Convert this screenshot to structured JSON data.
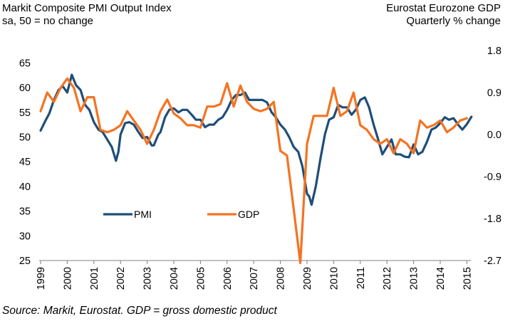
{
  "header": {
    "left_title": "Markit Composite PMI Output Index",
    "left_subtitle": "sa, 50 = no change",
    "right_title": "Eurostat Eurozone GDP",
    "right_subtitle": "Quarterly % change"
  },
  "footer": {
    "source": "Source: Markit, Eurostat. GDP = gross domestic product"
  },
  "chart_data": {
    "type": "line",
    "title": "Markit Composite PMI Output Index vs Eurostat Eurozone GDP",
    "xlabel": "",
    "ylabel_left": "Markit Composite PMI Output Index (sa, 50 = no change)",
    "ylabel_right": "Eurostat Eurozone GDP (Quarterly % change)",
    "xlim": [
      1999,
      2015.3
    ],
    "ylim_left": [
      25,
      67.5
    ],
    "ylim_right": [
      -2.7,
      1.8
    ],
    "x_ticks": [
      "1999",
      "2000",
      "2001",
      "2002",
      "2003",
      "2004",
      "2005",
      "2006",
      "2007",
      "2008",
      "2009",
      "2010",
      "2011",
      "2012",
      "2013",
      "2014",
      "2015"
    ],
    "y_ticks_left": [
      "25",
      "30",
      "35",
      "40",
      "45",
      "50",
      "55",
      "60",
      "65"
    ],
    "y_ticks_right": [
      "-2.7",
      "-1.8",
      "-0.9",
      "0.0",
      "0.9",
      "1.8"
    ],
    "grid": false,
    "legend": {
      "position": "center-left",
      "entries": [
        "PMI",
        "GDP"
      ]
    },
    "series": [
      {
        "name": "PMI",
        "axis": "left",
        "color": "#1F4E79",
        "x": [
          1999.0,
          1999.17,
          1999.33,
          1999.5,
          1999.67,
          1999.83,
          2000.0,
          2000.17,
          2000.25,
          2000.33,
          2000.5,
          2000.67,
          2000.83,
          2001.0,
          2001.17,
          2001.33,
          2001.5,
          2001.67,
          2001.83,
          2001.92,
          2002.0,
          2002.17,
          2002.33,
          2002.5,
          2002.67,
          2002.83,
          2003.0,
          2003.17,
          2003.25,
          2003.42,
          2003.5,
          2003.67,
          2003.83,
          2004.0,
          2004.17,
          2004.33,
          2004.5,
          2004.67,
          2004.83,
          2005.0,
          2005.17,
          2005.33,
          2005.5,
          2005.67,
          2005.83,
          2006.0,
          2006.17,
          2006.33,
          2006.5,
          2006.67,
          2006.83,
          2007.0,
          2007.17,
          2007.33,
          2007.5,
          2007.67,
          2007.83,
          2008.0,
          2008.17,
          2008.33,
          2008.5,
          2008.67,
          2008.83,
          2009.0,
          2009.08,
          2009.17,
          2009.33,
          2009.5,
          2009.67,
          2009.83,
          2010.0,
          2010.17,
          2010.33,
          2010.5,
          2010.67,
          2010.83,
          2011.0,
          2011.17,
          2011.33,
          2011.5,
          2011.67,
          2011.83,
          2012.0,
          2012.17,
          2012.33,
          2012.5,
          2012.67,
          2012.83,
          2013.0,
          2013.17,
          2013.33,
          2013.5,
          2013.67,
          2013.83,
          2014.0,
          2014.17,
          2014.33,
          2014.5,
          2014.67,
          2014.83,
          2015.0,
          2015.17
        ],
        "values": [
          51.3,
          53.2,
          54.8,
          57.5,
          59.5,
          60.3,
          59.0,
          62.6,
          61.5,
          60.5,
          59.5,
          56.5,
          55.5,
          53.0,
          51.5,
          51.0,
          49.5,
          48.0,
          45.2,
          47.0,
          50.5,
          52.8,
          53.0,
          52.5,
          51.0,
          49.8,
          50.0,
          48.3,
          48.3,
          50.5,
          51.0,
          54.0,
          55.5,
          55.8,
          55.0,
          55.5,
          55.5,
          54.5,
          53.5,
          53.5,
          52.0,
          52.5,
          52.5,
          53.5,
          54.0,
          55.5,
          57.5,
          58.5,
          58.5,
          59.0,
          57.5,
          57.5,
          57.5,
          57.5,
          57.0,
          55.0,
          54.0,
          52.5,
          51.5,
          50.0,
          48.0,
          47.0,
          44.0,
          38.5,
          38.0,
          36.3,
          40.0,
          45.5,
          50.5,
          53.5,
          54.0,
          56.5,
          56.0,
          56.0,
          54.5,
          55.5,
          57.5,
          58.0,
          56.0,
          52.5,
          49.5,
          46.5,
          48.0,
          49.5,
          46.5,
          46.5,
          46.0,
          45.9,
          48.5,
          46.5,
          47.0,
          49.0,
          51.5,
          51.9,
          52.8,
          54.0,
          53.5,
          53.8,
          52.5,
          51.5,
          52.6,
          54.1
        ]
      },
      {
        "name": "GDP",
        "axis": "right",
        "color": "#F47321",
        "x": [
          1999.0,
          1999.25,
          1999.5,
          1999.75,
          2000.0,
          2000.25,
          2000.5,
          2000.75,
          2001.0,
          2001.25,
          2001.5,
          2001.75,
          2002.0,
          2002.25,
          2002.5,
          2002.75,
          2003.0,
          2003.25,
          2003.5,
          2003.75,
          2004.0,
          2004.25,
          2004.5,
          2004.75,
          2005.0,
          2005.25,
          2005.5,
          2005.75,
          2006.0,
          2006.25,
          2006.5,
          2006.75,
          2007.0,
          2007.25,
          2007.5,
          2007.75,
          2008.0,
          2008.25,
          2008.5,
          2008.75,
          2009.0,
          2009.25,
          2009.5,
          2009.75,
          2010.0,
          2010.25,
          2010.5,
          2010.75,
          2011.0,
          2011.25,
          2011.5,
          2011.75,
          2012.0,
          2012.25,
          2012.5,
          2012.75,
          2013.0,
          2013.25,
          2013.5,
          2013.75,
          2014.0,
          2014.25,
          2014.5,
          2014.75,
          2015.0
        ],
        "values": [
          0.5,
          0.9,
          0.7,
          1.0,
          1.2,
          1.0,
          0.5,
          0.8,
          0.8,
          0.1,
          0.05,
          0.1,
          0.2,
          0.5,
          0.3,
          0.1,
          -0.2,
          0.1,
          0.5,
          0.75,
          0.45,
          0.35,
          0.2,
          0.2,
          0.15,
          0.6,
          0.6,
          0.65,
          1.1,
          0.6,
          1.05,
          0.7,
          0.55,
          0.5,
          0.55,
          0.7,
          -0.35,
          -0.45,
          -1.6,
          -2.75,
          -0.2,
          0.4,
          0.4,
          0.4,
          1.0,
          0.4,
          0.5,
          0.9,
          0.2,
          0.1,
          -0.1,
          -0.2,
          -0.1,
          -0.4,
          -0.1,
          -0.2,
          -0.4,
          0.3,
          0.15,
          0.2,
          0.3,
          0.05,
          0.15,
          0.3,
          0.35
        ]
      }
    ]
  }
}
